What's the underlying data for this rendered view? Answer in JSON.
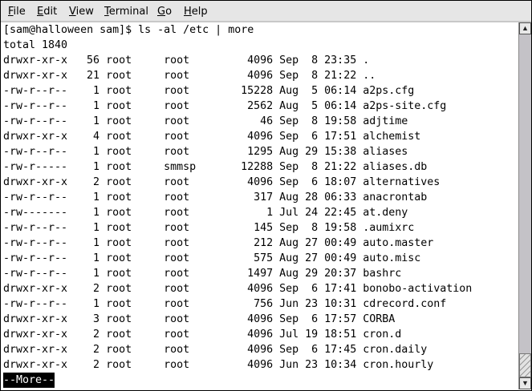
{
  "menu": {
    "items": [
      {
        "label": "File",
        "mnemonic": "F",
        "rest": "ile"
      },
      {
        "label": "Edit",
        "mnemonic": "E",
        "rest": "dit"
      },
      {
        "label": "View",
        "mnemonic": "V",
        "rest": "iew"
      },
      {
        "label": "Terminal",
        "mnemonic": "T",
        "rest": "erminal"
      },
      {
        "label": "Go",
        "mnemonic": "G",
        "rest": "o"
      },
      {
        "label": "Help",
        "mnemonic": "H",
        "rest": "elp"
      }
    ]
  },
  "terminal": {
    "prompt": "[sam@halloween sam]$ ls -al /etc | more",
    "total": "total 1840",
    "rows": [
      [
        "drwxr-xr-x",
        "56",
        "root",
        "root",
        "4096",
        "Sep",
        "8",
        "23:35",
        "."
      ],
      [
        "drwxr-xr-x",
        "21",
        "root",
        "root",
        "4096",
        "Sep",
        "8",
        "21:22",
        ".."
      ],
      [
        "-rw-r--r--",
        "1",
        "root",
        "root",
        "15228",
        "Aug",
        "5",
        "06:14",
        "a2ps.cfg"
      ],
      [
        "-rw-r--r--",
        "1",
        "root",
        "root",
        "2562",
        "Aug",
        "5",
        "06:14",
        "a2ps-site.cfg"
      ],
      [
        "-rw-r--r--",
        "1",
        "root",
        "root",
        "46",
        "Sep",
        "8",
        "19:58",
        "adjtime"
      ],
      [
        "drwxr-xr-x",
        "4",
        "root",
        "root",
        "4096",
        "Sep",
        "6",
        "17:51",
        "alchemist"
      ],
      [
        "-rw-r--r--",
        "1",
        "root",
        "root",
        "1295",
        "Aug",
        "29",
        "15:38",
        "aliases"
      ],
      [
        "-rw-r-----",
        "1",
        "root",
        "smmsp",
        "12288",
        "Sep",
        "8",
        "21:22",
        "aliases.db"
      ],
      [
        "drwxr-xr-x",
        "2",
        "root",
        "root",
        "4096",
        "Sep",
        "6",
        "18:07",
        "alternatives"
      ],
      [
        "-rw-r--r--",
        "1",
        "root",
        "root",
        "317",
        "Aug",
        "28",
        "06:33",
        "anacrontab"
      ],
      [
        "-rw-------",
        "1",
        "root",
        "root",
        "1",
        "Jul",
        "24",
        "22:45",
        "at.deny"
      ],
      [
        "-rw-r--r--",
        "1",
        "root",
        "root",
        "145",
        "Sep",
        "8",
        "19:58",
        ".aumixrc"
      ],
      [
        "-rw-r--r--",
        "1",
        "root",
        "root",
        "212",
        "Aug",
        "27",
        "00:49",
        "auto.master"
      ],
      [
        "-rw-r--r--",
        "1",
        "root",
        "root",
        "575",
        "Aug",
        "27",
        "00:49",
        "auto.misc"
      ],
      [
        "-rw-r--r--",
        "1",
        "root",
        "root",
        "1497",
        "Aug",
        "29",
        "20:37",
        "bashrc"
      ],
      [
        "drwxr-xr-x",
        "2",
        "root",
        "root",
        "4096",
        "Sep",
        "6",
        "17:41",
        "bonobo-activation"
      ],
      [
        "-rw-r--r--",
        "1",
        "root",
        "root",
        "756",
        "Jun",
        "23",
        "10:31",
        "cdrecord.conf"
      ],
      [
        "drwxr-xr-x",
        "3",
        "root",
        "root",
        "4096",
        "Sep",
        "6",
        "17:57",
        "CORBA"
      ],
      [
        "drwxr-xr-x",
        "2",
        "root",
        "root",
        "4096",
        "Jul",
        "19",
        "18:51",
        "cron.d"
      ],
      [
        "drwxr-xr-x",
        "2",
        "root",
        "root",
        "4096",
        "Sep",
        "6",
        "17:45",
        "cron.daily"
      ],
      [
        "drwxr-xr-x",
        "2",
        "root",
        "root",
        "4096",
        "Jun",
        "23",
        "10:34",
        "cron.hourly"
      ]
    ],
    "pager_prompt": "--More--"
  },
  "scrollbar": {
    "position": "bottom",
    "up_icon": "arrow-up-icon",
    "down_icon": "arrow-down-icon"
  }
}
